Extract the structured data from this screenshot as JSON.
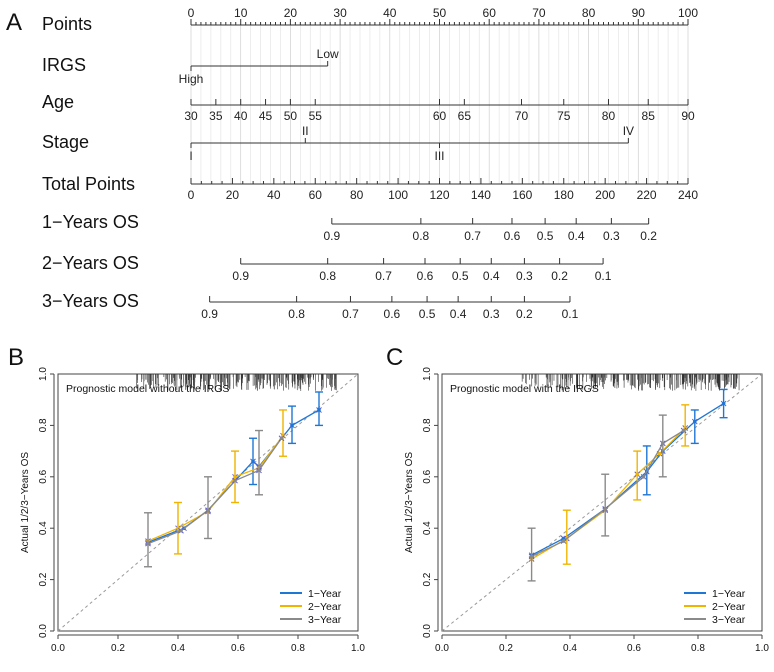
{
  "panels": {
    "a": "A",
    "b": "B",
    "c": "C"
  },
  "chart_data": [
    {
      "type": "nomogram",
      "panel": "A",
      "rows": [
        {
          "key": "points",
          "label": "Points",
          "points_range": [
            0,
            100
          ],
          "ticks": [
            {
              "v": 0,
              "t": "0"
            },
            {
              "v": 10,
              "t": "10"
            },
            {
              "v": 20,
              "t": "20"
            },
            {
              "v": 30,
              "t": "30"
            },
            {
              "v": 40,
              "t": "40"
            },
            {
              "v": 50,
              "t": "50"
            },
            {
              "v": 60,
              "t": "60"
            },
            {
              "v": 70,
              "t": "70"
            },
            {
              "v": 80,
              "t": "80"
            },
            {
              "v": 90,
              "t": "90"
            },
            {
              "v": 100,
              "t": "100"
            }
          ]
        },
        {
          "key": "irgs",
          "label": "IRGS",
          "categories": [
            {
              "label": "High",
              "points": 0,
              "side": "below"
            },
            {
              "label": "Low",
              "points": 27.5,
              "side": "above"
            }
          ]
        },
        {
          "key": "age",
          "label": "Age",
          "ticks": [
            {
              "v": 30,
              "t": "30",
              "points": 0
            },
            {
              "v": 35,
              "t": "35",
              "points": 5
            },
            {
              "v": 40,
              "t": "40",
              "points": 10
            },
            {
              "v": 45,
              "t": "45",
              "points": 15
            },
            {
              "v": 50,
              "t": "50",
              "points": 20
            },
            {
              "v": 55,
              "t": "55",
              "points": 25
            },
            {
              "v": 60,
              "t": "60",
              "points": 50
            },
            {
              "v": 65,
              "t": "65",
              "points": 55
            },
            {
              "v": 70,
              "t": "70",
              "points": 66.5
            },
            {
              "v": 75,
              "t": "75",
              "points": 75
            },
            {
              "v": 80,
              "t": "80",
              "points": 84
            },
            {
              "v": 85,
              "t": "85",
              "points": 92
            },
            {
              "v": 90,
              "t": "90",
              "points": 100
            }
          ]
        },
        {
          "key": "stage",
          "label": "Stage",
          "categories": [
            {
              "label": "I",
              "points": 0,
              "side": "below"
            },
            {
              "label": "II",
              "points": 23,
              "side": "above"
            },
            {
              "label": "III",
              "points": 50,
              "side": "below"
            },
            {
              "label": "IV",
              "points": 88,
              "side": "above"
            }
          ]
        },
        {
          "key": "total",
          "label": "Total Points",
          "total_range": [
            0,
            240
          ],
          "ticks": [
            {
              "v": 0,
              "t": "0"
            },
            {
              "v": 20,
              "t": "20"
            },
            {
              "v": 40,
              "t": "40"
            },
            {
              "v": 60,
              "t": "60"
            },
            {
              "v": 80,
              "t": "80"
            },
            {
              "v": 100,
              "t": "100"
            },
            {
              "v": 120,
              "t": "120"
            },
            {
              "v": 140,
              "t": "140"
            },
            {
              "v": 160,
              "t": "160"
            },
            {
              "v": 180,
              "t": "180"
            },
            {
              "v": 200,
              "t": "200"
            },
            {
              "v": 220,
              "t": "220"
            },
            {
              "v": 240,
              "t": "240"
            }
          ]
        },
        {
          "key": "os1",
          "label": "1−Years OS",
          "ticks": [
            {
              "t": "0.9",
              "total": 68
            },
            {
              "t": "0.8",
              "total": 111
            },
            {
              "t": "0.7",
              "total": 136
            },
            {
              "t": "0.6",
              "total": 155
            },
            {
              "t": "0.5",
              "total": 171
            },
            {
              "t": "0.4",
              "total": 186
            },
            {
              "t": "0.3",
              "total": 203
            },
            {
              "t": "0.2",
              "total": 221
            }
          ]
        },
        {
          "key": "os2",
          "label": "2−Years OS",
          "ticks": [
            {
              "t": "0.9",
              "total": 24
            },
            {
              "t": "0.8",
              "total": 66
            },
            {
              "t": "0.7",
              "total": 93
            },
            {
              "t": "0.6",
              "total": 113
            },
            {
              "t": "0.5",
              "total": 130
            },
            {
              "t": "0.4",
              "total": 145
            },
            {
              "t": "0.3",
              "total": 161
            },
            {
              "t": "0.2",
              "total": 178
            },
            {
              "t": "0.1",
              "total": 199
            }
          ]
        },
        {
          "key": "os3",
          "label": "3−Years OS",
          "ticks": [
            {
              "t": "0.9",
              "total": 9
            },
            {
              "t": "0.8",
              "total": 51
            },
            {
              "t": "0.7",
              "total": 77
            },
            {
              "t": "0.6",
              "total": 97
            },
            {
              "t": "0.5",
              "total": 114
            },
            {
              "t": "0.4",
              "total": 129
            },
            {
              "t": "0.3",
              "total": 145
            },
            {
              "t": "0.2",
              "total": 161
            },
            {
              "t": "0.1",
              "total": 183
            }
          ]
        }
      ]
    },
    {
      "type": "calibration",
      "panel": "B",
      "title": "Prognostic model without the IRGS",
      "ylabel": "Actual 1/2/3−Years OS",
      "xlim": [
        0,
        1
      ],
      "ylim": [
        0,
        1
      ],
      "xticks": [
        "0.0",
        "0.2",
        "0.4",
        "0.6",
        "0.8",
        "1.0"
      ],
      "yticks": [
        "0.0",
        "0.2",
        "0.4",
        "0.6",
        "0.8",
        "1.0"
      ],
      "legend": [
        "1−Year",
        "2−Year",
        "3−Year"
      ],
      "series": [
        {
          "name": "1−Year",
          "color": "#1f77d4",
          "points": [
            {
              "x": 0.3,
              "y": 0.345
            },
            {
              "x": 0.42,
              "y": 0.4
            },
            {
              "x": 0.5,
              "y": 0.47
            },
            {
              "x": 0.65,
              "y": 0.66
            },
            {
              "x": 0.67,
              "y": 0.64
            },
            {
              "x": 0.78,
              "y": 0.8
            },
            {
              "x": 0.87,
              "y": 0.86
            }
          ],
          "errors": [
            {
              "x": 0.65,
              "lo": 0.57,
              "hi": 0.75
            },
            {
              "x": 0.78,
              "lo": 0.73,
              "hi": 0.875
            },
            {
              "x": 0.87,
              "lo": 0.8,
              "hi": 0.93
            }
          ]
        },
        {
          "name": "2−Year",
          "color": "#f0b400",
          "points": [
            {
              "x": 0.3,
              "y": 0.35
            },
            {
              "x": 0.4,
              "y": 0.4
            },
            {
              "x": 0.5,
              "y": 0.465
            },
            {
              "x": 0.59,
              "y": 0.6
            },
            {
              "x": 0.67,
              "y": 0.635
            },
            {
              "x": 0.75,
              "y": 0.76
            }
          ],
          "errors": [
            {
              "x": 0.4,
              "lo": 0.3,
              "hi": 0.5
            },
            {
              "x": 0.59,
              "lo": 0.5,
              "hi": 0.7
            },
            {
              "x": 0.75,
              "lo": 0.68,
              "hi": 0.86
            }
          ]
        },
        {
          "name": "3−Year",
          "color": "#8a8a8a",
          "points": [
            {
              "x": 0.3,
              "y": 0.34
            },
            {
              "x": 0.41,
              "y": 0.39
            },
            {
              "x": 0.5,
              "y": 0.47
            },
            {
              "x": 0.59,
              "y": 0.585
            },
            {
              "x": 0.67,
              "y": 0.625
            },
            {
              "x": 0.745,
              "y": 0.75
            }
          ],
          "errors": [
            {
              "x": 0.3,
              "lo": 0.25,
              "hi": 0.46
            },
            {
              "x": 0.5,
              "lo": 0.36,
              "hi": 0.6
            },
            {
              "x": 0.67,
              "lo": 0.53,
              "hi": 0.78
            }
          ]
        }
      ]
    },
    {
      "type": "calibration",
      "panel": "C",
      "title": "Prognostic model with the IRGS",
      "ylabel": "Actual 1/2/3−Years OS",
      "xlim": [
        0,
        1
      ],
      "ylim": [
        0,
        1
      ],
      "xticks": [
        "0.0",
        "0.2",
        "0.4",
        "0.6",
        "0.8",
        "1.0"
      ],
      "yticks": [
        "0.0",
        "0.2",
        "0.4",
        "0.6",
        "0.8",
        "1.0"
      ],
      "legend": [
        "1−Year",
        "2−Year",
        "3−Year"
      ],
      "series": [
        {
          "name": "1−Year",
          "color": "#1f77d4",
          "points": [
            {
              "x": 0.28,
              "y": 0.295
            },
            {
              "x": 0.38,
              "y": 0.36
            },
            {
              "x": 0.51,
              "y": 0.475
            },
            {
              "x": 0.64,
              "y": 0.62
            },
            {
              "x": 0.69,
              "y": 0.7
            },
            {
              "x": 0.79,
              "y": 0.815
            },
            {
              "x": 0.88,
              "y": 0.885
            }
          ],
          "errors": [
            {
              "x": 0.64,
              "lo": 0.53,
              "hi": 0.72
            },
            {
              "x": 0.79,
              "lo": 0.73,
              "hi": 0.86
            },
            {
              "x": 0.88,
              "lo": 0.83,
              "hi": 0.94
            }
          ]
        },
        {
          "name": "2−Year",
          "color": "#f0b400",
          "points": [
            {
              "x": 0.28,
              "y": 0.28
            },
            {
              "x": 0.39,
              "y": 0.36
            },
            {
              "x": 0.51,
              "y": 0.47
            },
            {
              "x": 0.61,
              "y": 0.61
            },
            {
              "x": 0.68,
              "y": 0.69
            },
            {
              "x": 0.76,
              "y": 0.79
            }
          ],
          "errors": [
            {
              "x": 0.39,
              "lo": 0.26,
              "hi": 0.47
            },
            {
              "x": 0.61,
              "lo": 0.51,
              "hi": 0.7
            },
            {
              "x": 0.76,
              "lo": 0.72,
              "hi": 0.88
            }
          ]
        },
        {
          "name": "3−Year",
          "color": "#8a8a8a",
          "points": [
            {
              "x": 0.28,
              "y": 0.29
            },
            {
              "x": 0.38,
              "y": 0.35
            },
            {
              "x": 0.51,
              "y": 0.475
            },
            {
              "x": 0.63,
              "y": 0.6
            },
            {
              "x": 0.69,
              "y": 0.73
            },
            {
              "x": 0.755,
              "y": 0.78
            }
          ],
          "errors": [
            {
              "x": 0.28,
              "lo": 0.195,
              "hi": 0.4
            },
            {
              "x": 0.51,
              "lo": 0.37,
              "hi": 0.61
            },
            {
              "x": 0.69,
              "lo": 0.6,
              "hi": 0.84
            }
          ]
        }
      ]
    }
  ]
}
